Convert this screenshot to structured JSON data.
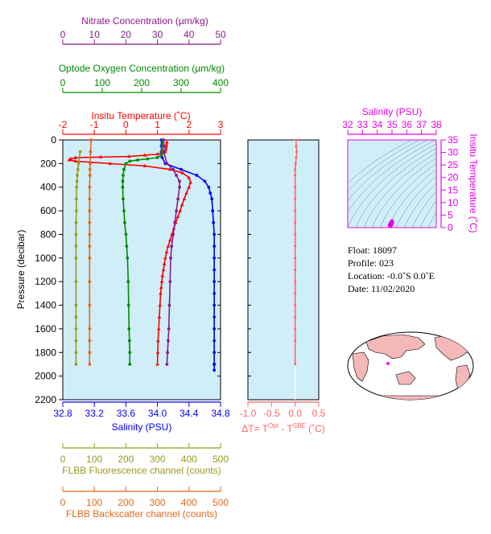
{
  "colors": {
    "nitrate": "#8B1A8B",
    "oxygen": "#008B00",
    "temperature": "#FF0000",
    "salinity": "#0000FF",
    "fluorescence": "#9A9A1E",
    "backscatter": "#E2681B",
    "delta": "#FF6464",
    "magenta": "#E600E6",
    "panel_bg": "#D0EEF8"
  },
  "axes": {
    "nitrate_label": "Nitrate Concentration (µm/kg)",
    "nitrate_ticks": [
      "0",
      "10",
      "20",
      "30",
      "40",
      "50"
    ],
    "oxygen_label": "Optode Oxygen Concentration (µm/kg)",
    "oxygen_ticks": [
      "0",
      "100",
      "200",
      "300",
      "400"
    ],
    "temp_label": "Insitu Temperature (˚C)",
    "temp_ticks": [
      "-2",
      "-1",
      "0",
      "1",
      "2",
      "3"
    ],
    "pressure_label": "Pressure (decibar)",
    "pressure_ticks": [
      "0",
      "200",
      "400",
      "600",
      "800",
      "1000",
      "1200",
      "1400",
      "1600",
      "1800",
      "2000",
      "2200"
    ],
    "salinity_label": "Salinity (PSU)",
    "salinity_ticks": [
      "32.8",
      "33.2",
      "33.6",
      "34.0",
      "34.4",
      "34.8"
    ],
    "fluor_label": "FLBB Fluorescence channel (counts)",
    "fluor_ticks": [
      "0",
      "100",
      "200",
      "300",
      "400",
      "500"
    ],
    "bs_label": "FLBB Backscatter channel (counts)",
    "bs_ticks": [
      "0",
      "100",
      "200",
      "300",
      "400",
      "500"
    ],
    "delta_label_a": "ΔT= T",
    "delta_label_sup1": "Opt",
    "delta_label_b": " - T",
    "delta_label_sup2": "SBE",
    "delta_label_c": " (˚C)",
    "delta_ticks": [
      "-1.0",
      "-0.5",
      "0.0",
      "0.5"
    ],
    "ts_sal_label": "Salinity (PSU)",
    "ts_sal_ticks": [
      "32",
      "33",
      "34",
      "35",
      "36",
      "37",
      "38"
    ],
    "ts_temp_label": "Insitu Temperature (˚C)",
    "ts_temp_ticks": [
      "0",
      "5",
      "10",
      "15",
      "20",
      "25",
      "30",
      "35"
    ]
  },
  "info": {
    "float": "Float:  18097",
    "profile": "Profile:  023",
    "location": "Location:  -0.0˚S   0.0˚E",
    "date": "Date:  11/02/2020"
  },
  "chart_data": [
    {
      "type": "line",
      "title": "",
      "ylabel": "Pressure (decibar)",
      "ylim": [
        2200,
        0
      ],
      "series": [
        {
          "name": "Insitu Temperature (˚C)",
          "xlim": [
            -2,
            3
          ],
          "x": [
            1.3,
            1.29,
            1.28,
            1.27,
            1.25,
            1.2,
            1.0,
            0.6,
            0.1,
            -0.8,
            -1.6,
            -1.75,
            -1.8,
            -1.6,
            -0.5,
            0.6,
            1.4,
            1.8,
            2.0,
            2.05,
            2.0,
            1.92,
            1.85,
            1.78,
            1.72,
            1.65,
            1.58,
            1.52,
            1.46,
            1.4,
            1.34,
            1.29,
            1.25,
            1.22,
            1.19,
            1.16,
            1.14,
            1.12,
            1.1,
            1.08,
            1.06,
            1.04,
            1.02,
            1.01,
            1.0
          ],
          "y": [
            20,
            40,
            60,
            80,
            100,
            110,
            120,
            130,
            140,
            145,
            150,
            160,
            170,
            180,
            200,
            220,
            250,
            280,
            320,
            360,
            400,
            450,
            500,
            550,
            600,
            650,
            700,
            750,
            800,
            850,
            900,
            950,
            1000,
            1050,
            1100,
            1150,
            1200,
            1250,
            1300,
            1400,
            1500,
            1600,
            1700,
            1800,
            1900
          ]
        },
        {
          "name": "Salinity (PSU)",
          "xlim": [
            32.8,
            34.8
          ],
          "x": [
            34.05,
            34.05,
            34.05,
            34.06,
            34.1,
            34.3,
            34.5,
            34.6,
            34.65,
            34.67,
            34.69,
            34.7,
            34.71,
            34.72,
            34.72,
            34.72,
            34.72,
            34.72,
            34.72,
            34.72,
            34.72,
            34.72,
            34.72,
            34.72,
            34.72,
            34.72,
            34.72
          ],
          "y": [
            0,
            50,
            100,
            150,
            200,
            250,
            300,
            350,
            400,
            450,
            500,
            600,
            700,
            800,
            900,
            1000,
            1100,
            1200,
            1300,
            1400,
            1500,
            1600,
            1700,
            1800,
            1900,
            1950,
            1900
          ]
        },
        {
          "name": "Optode Oxygen Concentration (µm/kg)",
          "xlim": [
            0,
            400
          ],
          "x": [
            253,
            252,
            251,
            250,
            240,
            215,
            190,
            170,
            160,
            155,
            153,
            152,
            152,
            153,
            155,
            157,
            160,
            162,
            164,
            166,
            167,
            168,
            169,
            170,
            170
          ],
          "y": [
            0,
            50,
            100,
            130,
            150,
            160,
            170,
            180,
            200,
            250,
            300,
            350,
            400,
            500,
            600,
            700,
            800,
            900,
            1000,
            1200,
            1400,
            1600,
            1700,
            1800,
            1900
          ]
        },
        {
          "name": "Nitrate Concentration (µm/kg)",
          "xlim": [
            0,
            50
          ],
          "x": [
            32,
            32,
            32,
            33,
            35,
            36,
            37,
            37,
            36.5,
            36,
            35.5,
            35,
            34.5,
            34.2,
            34,
            33.8,
            33.6,
            33.4,
            33.2,
            33
          ],
          "y": [
            0,
            50,
            100,
            200,
            250,
            300,
            350,
            400,
            500,
            600,
            700,
            800,
            900,
            1000,
            1200,
            1400,
            1600,
            1700,
            1800,
            1900
          ]
        },
        {
          "name": "FLBB Fluorescence channel (counts)",
          "xlim": [
            0,
            500
          ],
          "x": [
            55,
            50,
            48,
            46,
            45,
            44,
            43,
            43,
            42,
            42,
            42,
            42,
            42,
            42,
            42,
            42,
            42,
            42,
            42
          ],
          "y": [
            100,
            200,
            250,
            300,
            350,
            400,
            500,
            600,
            700,
            800,
            900,
            1000,
            1200,
            1400,
            1500,
            1600,
            1700,
            1800,
            1900
          ]
        },
        {
          "name": "FLBB Backscatter channel (counts)",
          "xlim": [
            0,
            500
          ],
          "x": [
            90,
            88,
            87,
            86,
            86,
            85,
            85,
            85,
            85,
            85,
            85,
            85,
            85,
            85,
            85,
            85,
            85,
            85
          ],
          "y": [
            0,
            100,
            200,
            250,
            300,
            400,
            500,
            600,
            700,
            800,
            900,
            1000,
            1200,
            1400,
            1600,
            1700,
            1800,
            1900
          ]
        }
      ]
    },
    {
      "type": "line",
      "xlabel": "ΔT= TOpt - TSBE (˚C)",
      "xlim": [
        -1.0,
        0.5
      ],
      "ylim": [
        2200,
        0
      ],
      "series": [
        {
          "x": [
            0.02,
            0.02,
            0.03,
            0.02,
            0.01,
            0.0,
            0.0,
            0.0,
            0.0,
            0.0,
            0.0,
            0.0,
            0.0,
            0.0,
            0.0,
            0.0,
            0.0,
            0.0,
            0.0,
            0.0,
            0.0,
            0.0
          ],
          "y": [
            0,
            50,
            100,
            150,
            200,
            250,
            300,
            400,
            500,
            600,
            700,
            800,
            900,
            1000,
            1100,
            1200,
            1300,
            1400,
            1500,
            1600,
            1700,
            1900
          ]
        }
      ]
    },
    {
      "type": "scatter",
      "xlabel": "Salinity (PSU)",
      "ylabel": "Insitu Temperature (˚C)",
      "xlim": [
        32,
        38
      ],
      "ylim": [
        0,
        35
      ],
      "series": [
        {
          "x": [
            34.85,
            34.9,
            34.95,
            35.0,
            34.9,
            34.95,
            35.0
          ],
          "y": [
            1.0,
            1.5,
            2.0,
            2.5,
            0.8,
            1.2,
            1.8
          ]
        }
      ]
    }
  ]
}
